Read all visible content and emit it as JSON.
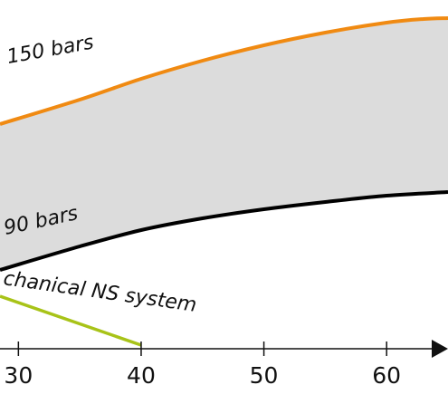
{
  "chart_data": {
    "type": "area",
    "title": "",
    "xlabel": "",
    "ylabel": "",
    "x_ticks": [
      30,
      40,
      50,
      60
    ],
    "xlim": [
      28.5,
      65
    ],
    "upper_curve": {
      "name": "150 bars",
      "color": "#f08a12",
      "points": [
        [
          28.5,
          248
        ],
        [
          35,
          275
        ],
        [
          40,
          298
        ],
        [
          45,
          318
        ],
        [
          50,
          335
        ],
        [
          55,
          349
        ],
        [
          60,
          360
        ],
        [
          63,
          364
        ],
        [
          65,
          365
        ]
      ]
    },
    "lower_curve": {
      "name": "90 bars",
      "color": "#000000",
      "points": [
        [
          28.5,
          87
        ],
        [
          35,
          113
        ],
        [
          40,
          131
        ],
        [
          45,
          144
        ],
        [
          50,
          154
        ],
        [
          55,
          162
        ],
        [
          60,
          169
        ],
        [
          65,
          173
        ]
      ]
    },
    "band_fill": "#dcdcdc",
    "extra_line": {
      "name": "chanical NS system",
      "color": "#a8c318",
      "points": [
        [
          28.5,
          58
        ],
        [
          40,
          4
        ]
      ]
    }
  }
}
